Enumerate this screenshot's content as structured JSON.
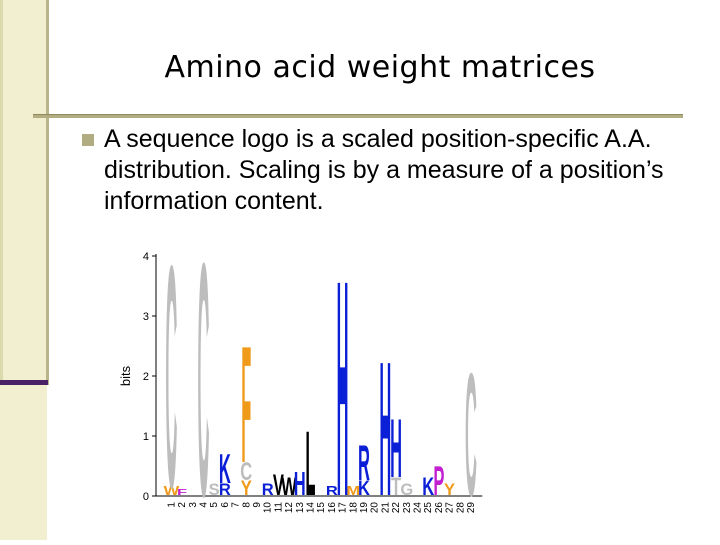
{
  "slide": {
    "title": "Amino acid weight matrices",
    "bullet": "A sequence logo is a scaled position-specific A.A. distribution.  Scaling is by a measure of a position’s information content."
  },
  "colors": {
    "title_rule": "#b3ad82",
    "sidebar": "#f1efd0",
    "accent": "#4a2066",
    "aa_blue": "#0b1fd6",
    "aa_orange": "#f09a1a",
    "aa_gray": "#bdbdbd",
    "aa_black": "#000000",
    "aa_green": "#14a33a",
    "aa_purple": "#c21fd0",
    "aa_red": "#e01818"
  },
  "chart_data": {
    "type": "sequence-logo",
    "ylabel": "bits",
    "ylim": [
      0,
      4
    ],
    "yticks": [
      "0",
      "1",
      "2",
      "3",
      "4"
    ],
    "positions": [
      "1",
      "2",
      "3",
      "4",
      "5",
      "6",
      "7",
      "8",
      "9",
      "10",
      "11",
      "12",
      "13",
      "14",
      "15",
      "16",
      "17",
      "18",
      "19",
      "20",
      "21",
      "22",
      "23",
      "24",
      "25",
      "26",
      "27",
      "28",
      "29"
    ],
    "stacks": [
      {
        "position": "1",
        "letters": [
          {
            "aa": "C",
            "bits": 3.8,
            "color": "#bdbdbd"
          },
          {
            "aa": "W",
            "bits": 0.15,
            "color": "#f09a1a"
          }
        ]
      },
      {
        "position": "2",
        "letters": [
          {
            "aa": "F",
            "bits": 0.1,
            "color": "#c21fd0"
          }
        ]
      },
      {
        "position": "4",
        "letters": [
          {
            "aa": "C",
            "bits": 4.0,
            "color": "#bdbdbd"
          }
        ]
      },
      {
        "position": "5",
        "letters": [
          {
            "aa": "S",
            "bits": 0.2,
            "color": "#bdbdbd"
          }
        ]
      },
      {
        "position": "6",
        "letters": [
          {
            "aa": "K",
            "bits": 0.5,
            "color": "#0b1fd6"
          },
          {
            "aa": "R",
            "bits": 0.2,
            "color": "#0b1fd6"
          }
        ]
      },
      {
        "position": "8",
        "letters": [
          {
            "aa": "F",
            "bits": 2.0,
            "color": "#f09a1a"
          },
          {
            "aa": "C",
            "bits": 0.3,
            "color": "#bdbdbd"
          },
          {
            "aa": "Y",
            "bits": 0.25,
            "color": "#f09a1a"
          }
        ]
      },
      {
        "position": "10",
        "letters": [
          {
            "aa": "R",
            "bits": 0.2,
            "color": "#0b1fd6"
          }
        ]
      },
      {
        "position": "11",
        "letters": [
          {
            "aa": "V",
            "bits": 0.35,
            "color": "#000000"
          }
        ]
      },
      {
        "position": "12",
        "letters": [
          {
            "aa": "W",
            "bits": 0.3,
            "color": "#000000"
          }
        ]
      },
      {
        "position": "13",
        "letters": [
          {
            "aa": "H",
            "bits": 0.4,
            "color": "#0b1fd6"
          }
        ]
      },
      {
        "position": "14",
        "letters": [
          {
            "aa": "L",
            "bits": 1.1,
            "color": "#000000"
          }
        ]
      },
      {
        "position": "16",
        "letters": [
          {
            "aa": "R",
            "bits": 0.15,
            "color": "#0b1fd6"
          }
        ]
      },
      {
        "position": "17",
        "letters": [
          {
            "aa": "H",
            "bits": 3.7,
            "color": "#0b1fd6"
          }
        ]
      },
      {
        "position": "18",
        "letters": [
          {
            "aa": "M",
            "bits": 0.15,
            "color": "#f09a1a"
          }
        ]
      },
      {
        "position": "19",
        "letters": [
          {
            "aa": "R",
            "bits": 0.6,
            "color": "#0b1fd6"
          },
          {
            "aa": "K",
            "bits": 0.25,
            "color": "#0b1fd6"
          }
        ]
      },
      {
        "position": "21",
        "letters": [
          {
            "aa": "H",
            "bits": 2.3,
            "color": "#0b1fd6"
          }
        ]
      },
      {
        "position": "22",
        "letters": [
          {
            "aa": "H",
            "bits": 1.0,
            "color": "#0b1fd6"
          },
          {
            "aa": "T",
            "bits": 0.3,
            "color": "#bdbdbd"
          }
        ]
      },
      {
        "position": "23",
        "letters": [
          {
            "aa": "G",
            "bits": 0.2,
            "color": "#bdbdbd"
          }
        ]
      },
      {
        "position": "25",
        "letters": [
          {
            "aa": "K",
            "bits": 0.3,
            "color": "#0b1fd6"
          }
        ]
      },
      {
        "position": "26",
        "letters": [
          {
            "aa": "P",
            "bits": 0.5,
            "color": "#c21fd0"
          }
        ]
      },
      {
        "position": "27",
        "letters": [
          {
            "aa": "Y",
            "bits": 0.2,
            "color": "#f09a1a"
          }
        ]
      },
      {
        "position": "29",
        "letters": [
          {
            "aa": "C",
            "bits": 2.1,
            "color": "#bdbdbd"
          }
        ]
      }
    ]
  }
}
